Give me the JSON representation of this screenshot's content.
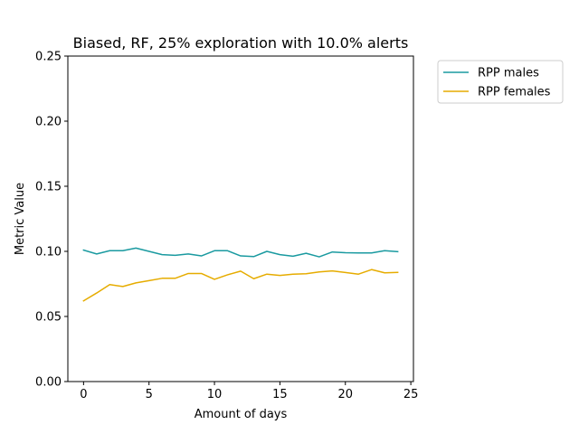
{
  "chart_data": {
    "type": "line",
    "title": "Biased, RF, 25% exploration with 10.0% alerts",
    "xlabel": "Amount of days",
    "ylabel": "Metric Value",
    "xlim": [
      -1.2,
      25.2
    ],
    "ylim": [
      0.0,
      0.25
    ],
    "xticks": [
      0,
      5,
      10,
      15,
      20,
      25
    ],
    "yticks": [
      0.0,
      0.05,
      0.1,
      0.15,
      0.2,
      0.25
    ],
    "xtick_labels": [
      "0",
      "5",
      "10",
      "15",
      "20",
      "25"
    ],
    "ytick_labels": [
      "0.00",
      "0.05",
      "0.10",
      "0.15",
      "0.20",
      "0.25"
    ],
    "grid": false,
    "legend_position": "outside-right-top",
    "x": [
      0,
      1,
      2,
      3,
      4,
      5,
      6,
      7,
      8,
      9,
      10,
      11,
      12,
      13,
      14,
      15,
      16,
      17,
      18,
      19,
      20,
      21,
      22,
      23,
      24
    ],
    "series": [
      {
        "name": "RPP males",
        "color": "#1a9aa0",
        "values": [
          0.101,
          0.098,
          0.1005,
          0.1005,
          0.1025,
          0.1,
          0.0975,
          0.097,
          0.098,
          0.0965,
          0.1005,
          0.1005,
          0.0965,
          0.096,
          0.1,
          0.0975,
          0.0963,
          0.0985,
          0.0958,
          0.0995,
          0.099,
          0.0988,
          0.0988,
          0.1005,
          0.0998
        ]
      },
      {
        "name": "RPP females",
        "color": "#e6ac00",
        "values": [
          0.062,
          0.068,
          0.0745,
          0.073,
          0.0758,
          0.0775,
          0.0793,
          0.0793,
          0.083,
          0.083,
          0.0785,
          0.082,
          0.0848,
          0.079,
          0.0825,
          0.0815,
          0.0825,
          0.0828,
          0.0842,
          0.085,
          0.0838,
          0.0825,
          0.086,
          0.0835,
          0.0838
        ]
      }
    ]
  }
}
